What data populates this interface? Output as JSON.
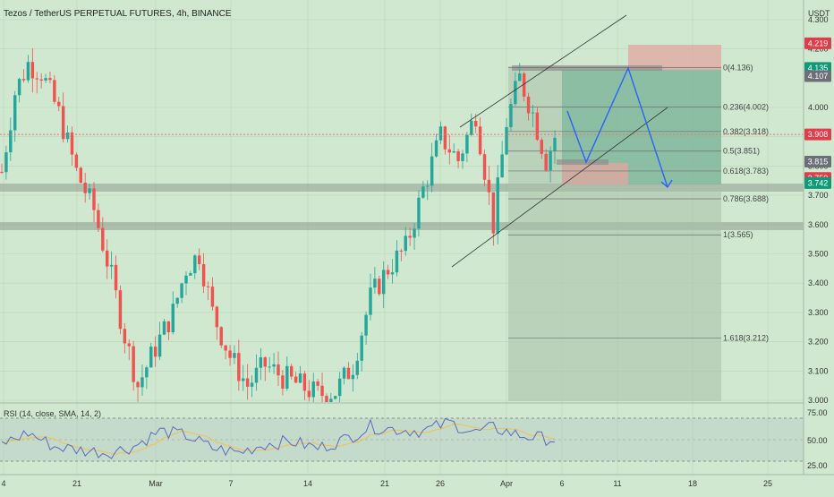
{
  "header": {
    "title": "Tezos / TetherUS PERPETUAL FUTURES, 4h, BINANCE",
    "currency": "USDT"
  },
  "rsi": {
    "label": "RSI (14, close, SMA, 14, 2)",
    "levels": [
      "75.00",
      "50.00",
      "25.00"
    ]
  },
  "colors": {
    "background": "#cfe8cf",
    "up_candle": "#26a69a",
    "down_candle": "#ef5350",
    "price_line": "#e57373",
    "rsi_line": "#5c6bc0",
    "rsi_sma": "#f2c14e",
    "projection": "#2962ff",
    "label_red": "#e03c4a",
    "label_green": "#0d9a76",
    "label_gray": "#6c6f78"
  },
  "price_labels": [
    {
      "value": "4.219",
      "color": "red"
    },
    {
      "value": "4.135",
      "color": "green"
    },
    {
      "value": "4.107",
      "color": "gray"
    },
    {
      "value": "3.908",
      "color": "red"
    },
    {
      "value": "3.815",
      "color": "gray"
    },
    {
      "value": "3.759",
      "color": "red"
    },
    {
      "value": "3.742",
      "color": "green"
    }
  ],
  "fib_levels": [
    {
      "label": "0(4.136)",
      "price": 4.136
    },
    {
      "label": "0.236(4.002)",
      "price": 4.002
    },
    {
      "label": "0.382(3.918)",
      "price": 3.918
    },
    {
      "label": "0.5(3.851)",
      "price": 3.851
    },
    {
      "label": "0.618(3.783)",
      "price": 3.783
    },
    {
      "label": "0.786(3.688)",
      "price": 3.688
    },
    {
      "label": "1(3.565)",
      "price": 3.565
    },
    {
      "label": "1.618(3.212)",
      "price": 3.212
    }
  ],
  "chart_data": {
    "type": "candlestick",
    "title": "Tezos / TetherUS PERPETUAL FUTURES, 4h, BINANCE",
    "y_axis_ticks": [
      "4.300",
      "4.200",
      "4.000",
      "3.900",
      "3.800",
      "3.700",
      "3.600",
      "3.500",
      "3.400",
      "3.300",
      "3.200",
      "3.100",
      "3.000"
    ],
    "x_axis_ticks": [
      "4",
      "21",
      "Mar",
      "7",
      "14",
      "21",
      "26",
      "Apr",
      "6",
      "11",
      "18",
      "25"
    ],
    "ylim": [
      3.0,
      4.35
    ],
    "current_price": 3.908,
    "trend": [
      {
        "t": 0,
        "p": 3.78
      },
      {
        "t": 3,
        "p": 4.05
      },
      {
        "t": 6,
        "p": 4.15
      },
      {
        "t": 9,
        "p": 4.12
      },
      {
        "t": 13,
        "p": 3.98
      },
      {
        "t": 17,
        "p": 3.78
      },
      {
        "t": 21,
        "p": 3.65
      },
      {
        "t": 25,
        "p": 3.42
      },
      {
        "t": 28,
        "p": 3.22
      },
      {
        "t": 31,
        "p": 3.05
      },
      {
        "t": 35,
        "p": 3.18
      },
      {
        "t": 39,
        "p": 3.3
      },
      {
        "t": 42,
        "p": 3.45
      },
      {
        "t": 45,
        "p": 3.5
      },
      {
        "t": 48,
        "p": 3.3
      },
      {
        "t": 52,
        "p": 3.15
      },
      {
        "t": 56,
        "p": 3.05
      },
      {
        "t": 60,
        "p": 3.12
      },
      {
        "t": 64,
        "p": 3.08
      },
      {
        "t": 68,
        "p": 3.05
      },
      {
        "t": 72,
        "p": 3.02
      },
      {
        "t": 76,
        "p": 3.03
      },
      {
        "t": 80,
        "p": 3.12
      },
      {
        "t": 84,
        "p": 3.35
      },
      {
        "t": 88,
        "p": 3.45
      },
      {
        "t": 92,
        "p": 3.52
      },
      {
        "t": 96,
        "p": 3.72
      },
      {
        "t": 100,
        "p": 3.9
      },
      {
        "t": 104,
        "p": 3.82
      },
      {
        "t": 108,
        "p": 3.98
      },
      {
        "t": 112,
        "p": 3.6
      },
      {
        "t": 115,
        "p": 3.95
      },
      {
        "t": 118,
        "p": 4.1
      },
      {
        "t": 121,
        "p": 3.98
      },
      {
        "t": 124,
        "p": 3.82
      },
      {
        "t": 126,
        "p": 3.9
      }
    ],
    "rsi_trend": [
      {
        "t": 0,
        "v": 45
      },
      {
        "t": 6,
        "v": 58
      },
      {
        "t": 12,
        "v": 42
      },
      {
        "t": 18,
        "v": 38
      },
      {
        "t": 24,
        "v": 35
      },
      {
        "t": 30,
        "v": 42
      },
      {
        "t": 36,
        "v": 60
      },
      {
        "t": 42,
        "v": 55
      },
      {
        "t": 48,
        "v": 40
      },
      {
        "t": 54,
        "v": 35
      },
      {
        "t": 60,
        "v": 45
      },
      {
        "t": 66,
        "v": 48
      },
      {
        "t": 72,
        "v": 40
      },
      {
        "t": 78,
        "v": 50
      },
      {
        "t": 84,
        "v": 65
      },
      {
        "t": 90,
        "v": 62
      },
      {
        "t": 96,
        "v": 60
      },
      {
        "t": 102,
        "v": 70
      },
      {
        "t": 108,
        "v": 58
      },
      {
        "t": 112,
        "v": 64
      },
      {
        "t": 118,
        "v": 55
      },
      {
        "t": 126,
        "v": 50
      }
    ]
  }
}
